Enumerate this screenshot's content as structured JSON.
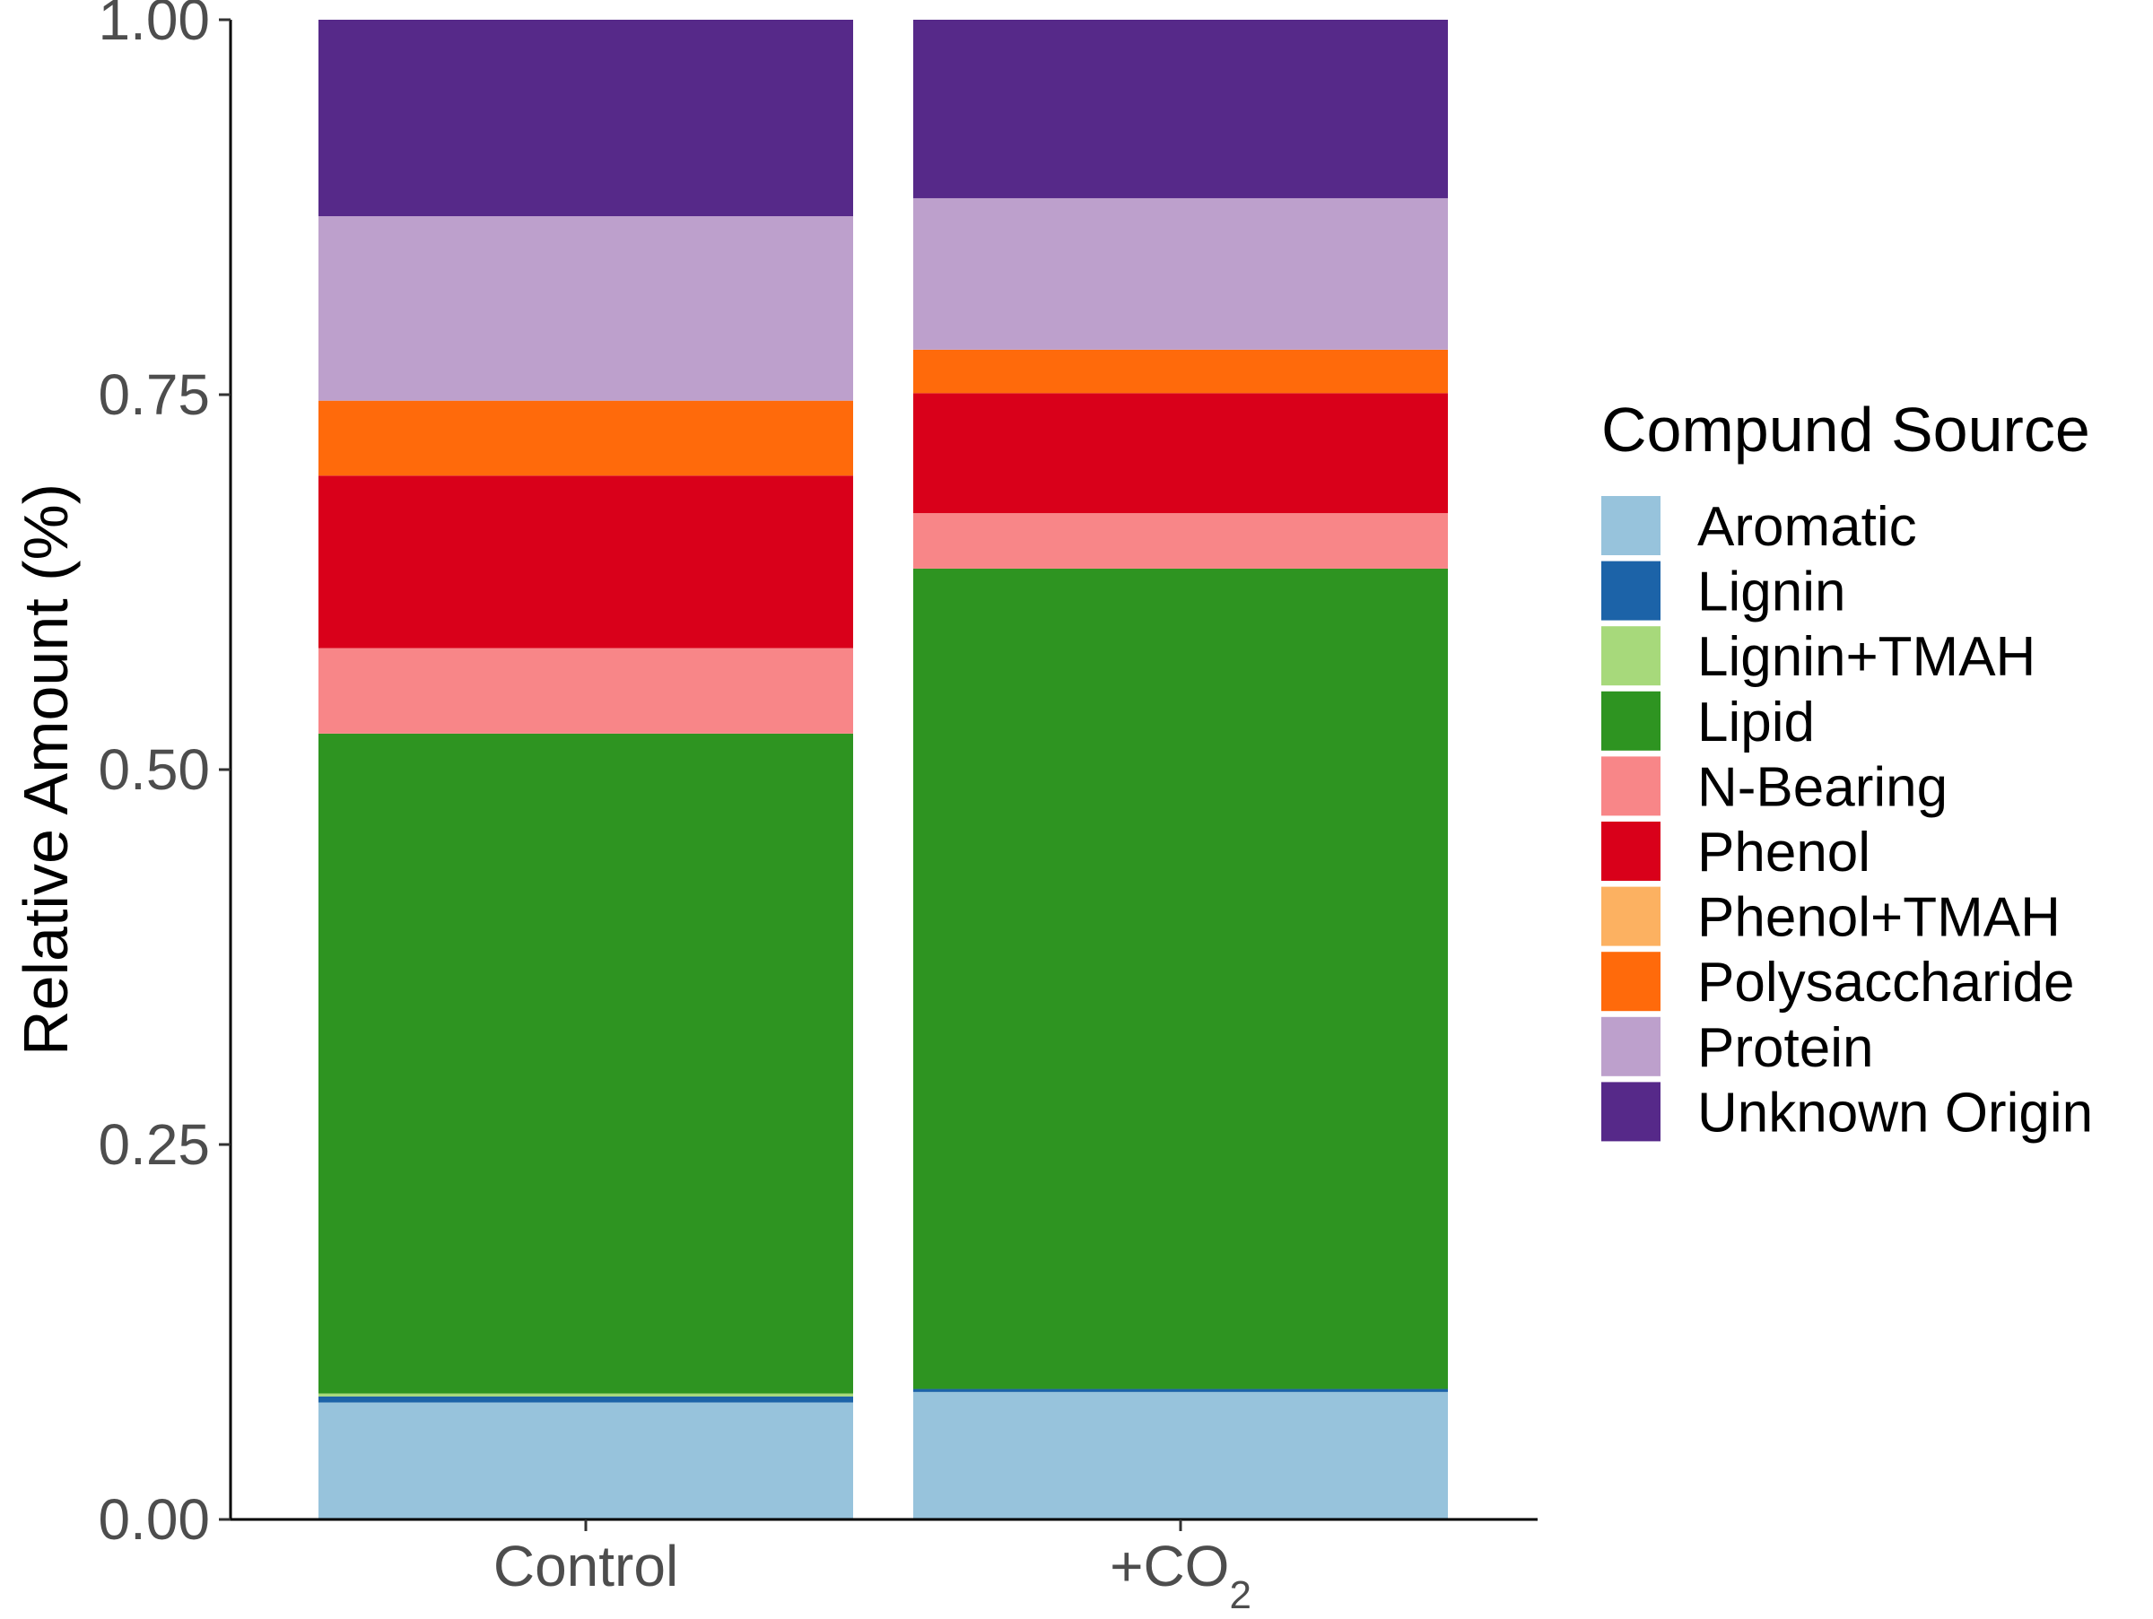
{
  "chart_data": {
    "type": "bar",
    "stacked": true,
    "categories": [
      "Control",
      "+CO2"
    ],
    "category_display": [
      {
        "prefix": "Control",
        "sub": ""
      },
      {
        "prefix": "+CO",
        "sub": "2"
      }
    ],
    "ylabel": "Relative Amount (%)",
    "xlabel": "",
    "ylim": [
      0,
      1
    ],
    "yticks": [
      0,
      0.25,
      0.5,
      0.75,
      1
    ],
    "ytick_labels": [
      "0.00",
      "0.25",
      "0.50",
      "0.75",
      "1.00"
    ],
    "grid": false,
    "legend": {
      "title": "Compund Source",
      "placement": "right"
    },
    "series": [
      {
        "name": "Aromatic",
        "color": "#97C3DC",
        "values": [
          0.078,
          0.085
        ]
      },
      {
        "name": "Lignin",
        "color": "#1C63A8",
        "values": [
          0.004,
          0.002
        ]
      },
      {
        "name": "Lignin+TMAH",
        "color": "#A7D97B",
        "values": [
          0.002,
          0.0
        ]
      },
      {
        "name": "Lipid",
        "color": "#2E9421",
        "values": [
          0.44,
          0.547
        ]
      },
      {
        "name": "N-Bearing",
        "color": "#F88688",
        "values": [
          0.057,
          0.037
        ]
      },
      {
        "name": "Phenol",
        "color": "#D9001A",
        "values": [
          0.115,
          0.08
        ]
      },
      {
        "name": "Phenol+TMAH",
        "color": "#FCB161",
        "values": [
          0.0,
          0.0
        ]
      },
      {
        "name": "Polysaccharide",
        "color": "#FF6A0B",
        "values": [
          0.05,
          0.029
        ]
      },
      {
        "name": "Protein",
        "color": "#BDA0CC",
        "values": [
          0.123,
          0.101
        ]
      },
      {
        "name": "Unknown Origin",
        "color": "#562989",
        "values": [
          0.131,
          0.119
        ]
      }
    ]
  }
}
